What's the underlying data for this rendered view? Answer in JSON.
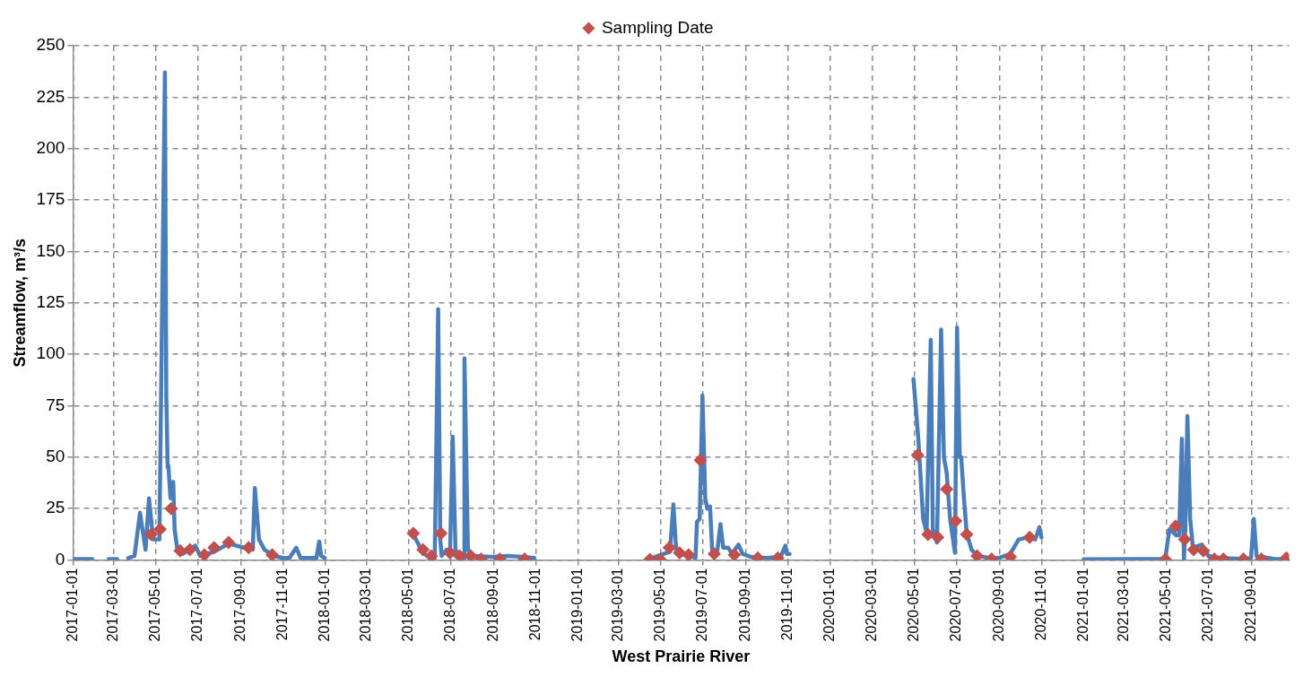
{
  "chart_data": {
    "type": "line",
    "xlabel": "West Prairie River",
    "ylabel": "Streamflow, m³/s",
    "xlim": [
      "2017-01-01",
      "2021-10-25"
    ],
    "ylim": [
      0,
      250
    ],
    "xticks": [
      "2017-01-01",
      "2017-03-01",
      "2017-05-01",
      "2017-07-01",
      "2017-09-01",
      "2017-11-01",
      "2018-01-01",
      "2018-03-01",
      "2018-05-01",
      "2018-07-01",
      "2018-09-01",
      "2018-11-01",
      "2019-01-01",
      "2019-03-01",
      "2019-05-01",
      "2019-07-01",
      "2019-09-01",
      "2019-11-01",
      "2020-01-01",
      "2020-03-01",
      "2020-05-01",
      "2020-07-01",
      "2020-09-01",
      "2020-11-01",
      "2021-01-01",
      "2021-03-01",
      "2021-05-01",
      "2021-07-01",
      "2021-09-01"
    ],
    "yticks": [
      0,
      25,
      50,
      75,
      100,
      125,
      150,
      175,
      200,
      225,
      250
    ],
    "grid": true,
    "legend": "top",
    "series": [
      {
        "color": "#4a7ebb",
        "marker": "none",
        "line_style": "solid",
        "x": [
          "2017-01-01",
          "2017-01-29",
          "2017-02-10",
          "2017-02-22",
          "2017-03-06",
          "2017-03-10",
          "2017-03-22",
          "2017-03-31",
          "2017-04-08",
          "2017-04-16",
          "2017-04-21",
          "2017-04-27",
          "2017-05-06",
          "2017-05-14",
          "2017-05-16",
          "2017-05-18",
          "2017-05-19",
          "2017-05-22",
          "2017-05-26",
          "2017-05-28",
          "2017-06-01",
          "2017-06-09",
          "2017-06-27",
          "2017-07-04",
          "2017-07-24",
          "2017-08-14",
          "2017-09-05",
          "2017-09-18",
          "2017-09-21",
          "2017-09-27",
          "2017-10-05",
          "2017-10-18",
          "2017-11-01",
          "2017-11-10",
          "2017-11-20",
          "2017-11-26",
          "2017-12-19",
          "2017-12-23",
          "2017-12-26",
          "2017-12-31",
          "2018-03-01",
          "2018-05-08",
          "2018-05-22",
          "2018-06-01",
          "2018-06-08",
          "2018-06-10",
          "2018-06-13",
          "2018-06-16",
          "2018-06-18",
          "2018-06-25",
          "2018-06-30",
          "2018-07-04",
          "2018-07-08",
          "2018-07-14",
          "2018-07-20",
          "2018-07-21",
          "2018-07-26",
          "2018-08-03",
          "2018-08-29",
          "2018-09-21",
          "2018-10-13",
          "2018-10-30",
          "2019-01-01",
          "2019-04-13",
          "2019-05-14",
          "2019-05-19",
          "2019-05-23",
          "2019-05-29",
          "2019-06-12",
          "2019-06-20",
          "2019-06-22",
          "2019-06-26",
          "2019-06-30",
          "2019-07-04",
          "2019-07-07",
          "2019-07-11",
          "2019-07-14",
          "2019-07-21",
          "2019-07-26",
          "2019-07-30",
          "2019-08-06",
          "2019-08-12",
          "2019-08-21",
          "2019-08-27",
          "2019-09-08",
          "2019-09-29",
          "2019-10-21",
          "2019-10-28",
          "2019-10-30",
          "2019-11-03",
          "2020-01-01",
          "2020-04-30",
          "2020-05-02",
          "2020-05-07",
          "2020-05-14",
          "2020-05-19",
          "2020-05-25",
          "2020-05-28",
          "2020-06-03",
          "2020-06-09",
          "2020-06-13",
          "2020-06-17",
          "2020-06-22",
          "2020-06-29",
          "2020-07-02",
          "2020-07-06",
          "2020-07-08",
          "2020-07-12",
          "2020-07-16",
          "2020-07-23",
          "2020-08-01",
          "2020-08-18",
          "2020-08-31",
          "2020-09-17",
          "2020-09-29",
          "2020-10-13",
          "2020-10-23",
          "2020-10-29",
          "2020-11-01",
          "2020-12-01",
          "2021-01-01",
          "2021-04-29",
          "2021-05-05",
          "2021-05-15",
          "2021-05-19",
          "2021-05-23",
          "2021-05-26",
          "2021-05-28",
          "2021-05-31",
          "2021-06-04",
          "2021-06-08",
          "2021-06-21",
          "2021-06-30",
          "2021-07-17",
          "2021-08-22",
          "2021-08-31",
          "2021-09-04",
          "2021-09-08",
          "2021-10-04",
          "2021-10-24"
        ],
        "values": [
          0.5,
          0.5,
          null,
          0.5,
          0.5,
          null,
          1,
          2,
          23,
          5,
          30,
          10,
          10,
          237,
          80,
          45,
          46,
          30,
          38,
          15,
          5,
          3,
          7,
          2,
          4,
          8,
          6,
          5,
          35,
          10,
          5,
          2,
          1,
          1,
          6,
          1,
          1,
          9,
          2,
          1,
          null,
          12.5,
          3.5,
          1,
          1,
          47.5,
          122,
          10,
          2,
          5,
          2,
          60,
          5,
          1,
          1,
          98,
          5,
          2,
          1.5,
          2,
          1.5,
          1,
          null,
          0.5,
          4,
          27,
          5,
          3,
          2,
          1,
          18.5,
          20,
          80,
          30,
          25,
          26,
          5,
          3,
          17.5,
          6,
          6,
          3,
          7.5,
          3,
          1.5,
          1,
          1.5,
          7,
          3,
          3,
          null,
          88,
          80,
          59,
          20,
          13.5,
          107,
          15,
          8.5,
          112,
          50,
          42.5,
          20,
          3.5,
          113,
          50,
          50,
          30,
          13,
          5,
          2,
          1,
          1,
          3,
          10,
          11,
          10,
          16,
          11,
          null,
          0.3,
          0.5,
          15,
          12,
          12,
          59,
          0,
          15,
          70,
          20,
          6,
          7.5,
          2,
          1,
          0.5,
          1,
          20,
          2,
          0.5,
          0.5
        ]
      },
      {
        "type": "scatter",
        "name": "Sampling Date",
        "color": "#c0504d",
        "marker": "diamond",
        "x": [
          "2017-04-24",
          "2017-05-07",
          "2017-05-23",
          "2017-06-05",
          "2017-06-19",
          "2017-07-10",
          "2017-07-24",
          "2017-08-14",
          "2017-09-12",
          "2017-10-16",
          "2018-05-08",
          "2018-05-22",
          "2018-06-03",
          "2018-06-17",
          "2018-06-30",
          "2018-07-14",
          "2018-07-30",
          "2018-08-14",
          "2018-09-10",
          "2018-10-16",
          "2019-04-15",
          "2019-04-30",
          "2019-05-13",
          "2019-05-28",
          "2019-06-10",
          "2019-06-27",
          "2019-07-17",
          "2019-08-15",
          "2019-09-18",
          "2019-10-17",
          "2020-05-06",
          "2020-05-21",
          "2020-06-04",
          "2020-06-17",
          "2020-06-30",
          "2020-07-16",
          "2020-07-31",
          "2020-08-21",
          "2020-09-17",
          "2020-10-15",
          "2021-04-29",
          "2021-05-14",
          "2021-05-27",
          "2021-06-09",
          "2021-06-23",
          "2021-07-09",
          "2021-07-22",
          "2021-08-20",
          "2021-09-15",
          "2021-10-21"
        ],
        "values": [
          12.5,
          15,
          25,
          4.5,
          5,
          2.5,
          6,
          8.5,
          6,
          2.5,
          13,
          5,
          2,
          13,
          3.5,
          2,
          2,
          0.5,
          0.5,
          0.5,
          0.2,
          0.2,
          6,
          3.5,
          2.5,
          48.5,
          3,
          2.5,
          1,
          1,
          51,
          12.5,
          11,
          34.5,
          19,
          12.5,
          2,
          0.5,
          1.5,
          11,
          0.3,
          16.5,
          10,
          5,
          4.5,
          0.5,
          0.5,
          0.5,
          0.5,
          1
        ]
      }
    ]
  }
}
